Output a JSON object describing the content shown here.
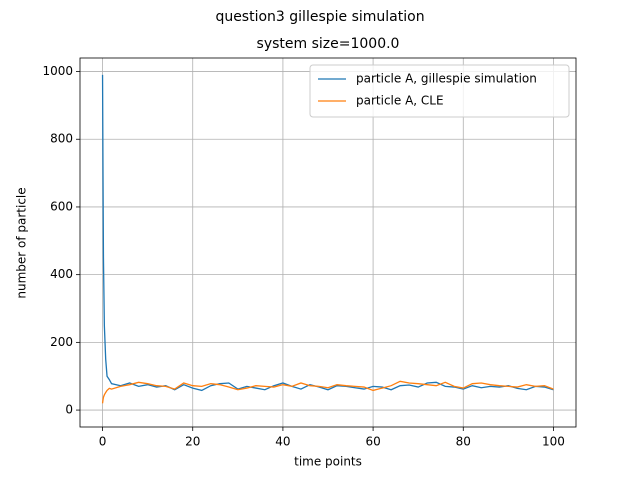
{
  "chart_data": {
    "type": "line",
    "suptitle": "question3 gillespie simulation",
    "title": "system size=1000.0",
    "xlabel": "time points",
    "ylabel": "number of particle",
    "x": [
      0,
      0.1,
      0.2,
      0.4,
      0.7,
      1,
      1.5,
      2,
      4,
      6,
      8,
      10,
      12,
      14,
      16,
      18,
      20,
      22,
      24,
      26,
      28,
      30,
      32,
      34,
      36,
      38,
      40,
      42,
      44,
      46,
      48,
      50,
      52,
      54,
      56,
      58,
      60,
      62,
      64,
      66,
      68,
      70,
      72,
      74,
      76,
      78,
      80,
      82,
      84,
      86,
      88,
      90,
      92,
      94,
      96,
      98,
      100
    ],
    "series": [
      {
        "name": "particle A, gillespie simulation",
        "color": "#1f77b4",
        "values": [
          990,
          700,
          450,
          250,
          150,
          100,
          90,
          78,
          72,
          80,
          70,
          75,
          68,
          72,
          60,
          75,
          65,
          58,
          72,
          78,
          80,
          62,
          70,
          65,
          60,
          72,
          80,
          70,
          62,
          75,
          68,
          60,
          72,
          70,
          66,
          62,
          70,
          68,
          60,
          72,
          74,
          68,
          80,
          82,
          70,
          68,
          62,
          72,
          66,
          70,
          68,
          72,
          64,
          60,
          70,
          68,
          60
        ]
      },
      {
        "name": "particle A, CLE",
        "color": "#ff7f0e",
        "values": [
          20,
          30,
          38,
          45,
          52,
          58,
          64,
          62,
          70,
          75,
          82,
          78,
          72,
          70,
          62,
          80,
          72,
          70,
          78,
          75,
          68,
          60,
          65,
          72,
          70,
          68,
          75,
          70,
          80,
          72,
          70,
          66,
          75,
          72,
          70,
          68,
          58,
          65,
          72,
          85,
          80,
          78,
          75,
          72,
          82,
          70,
          65,
          78,
          80,
          75,
          72,
          70,
          68,
          75,
          70,
          72,
          62
        ]
      }
    ],
    "xlim": [
      -5,
      105
    ],
    "ylim": [
      -50,
      1040
    ],
    "xticks": [
      0,
      20,
      40,
      60,
      80,
      100
    ],
    "yticks": [
      0,
      200,
      400,
      600,
      800,
      1000
    ],
    "grid": true,
    "legend": "upper right"
  }
}
